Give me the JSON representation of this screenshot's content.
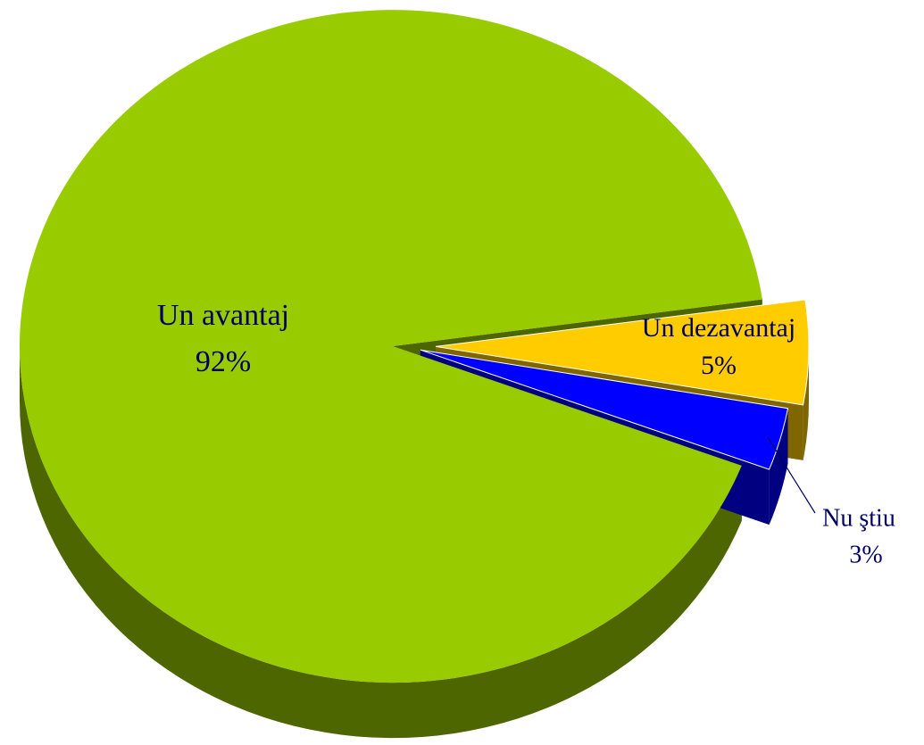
{
  "chart_data": {
    "type": "pie3d",
    "categories": [
      "Un avantaj",
      "Un dezavantaj",
      "Nu ştiu"
    ],
    "values": [
      92,
      5,
      3
    ],
    "value_labels": [
      "92%",
      "5%",
      "3%"
    ],
    "colors": [
      "#99cc00",
      "#ffcc00",
      "#0000ff"
    ]
  }
}
